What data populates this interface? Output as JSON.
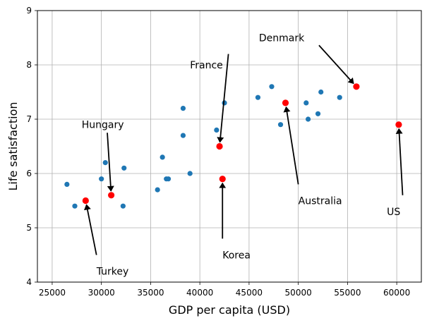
{
  "chart_data": {
    "type": "scatter",
    "title": "",
    "xlabel": "GDP per capita (USD)",
    "ylabel": "Life satisfaction",
    "xlim": [
      23500,
      62500
    ],
    "ylim": [
      4,
      9
    ],
    "xticks": [
      25000,
      30000,
      35000,
      40000,
      45000,
      50000,
      55000,
      60000
    ],
    "yticks": [
      4,
      5,
      6,
      7,
      8,
      9
    ],
    "grid": true,
    "colors": {
      "points": "#1f77b4",
      "highlight": "#ff0000",
      "grid": "#b0b0b0",
      "arrow": "#000000"
    },
    "series": [
      {
        "points": [
          {
            "x": 26500,
            "y": 5.8
          },
          {
            "x": 27300,
            "y": 5.4
          },
          {
            "x": 30000,
            "y": 5.9
          },
          {
            "x": 30400,
            "y": 6.2
          },
          {
            "x": 32300,
            "y": 6.1
          },
          {
            "x": 32200,
            "y": 5.4
          },
          {
            "x": 35700,
            "y": 5.7
          },
          {
            "x": 36200,
            "y": 6.3
          },
          {
            "x": 36600,
            "y": 5.9
          },
          {
            "x": 36800,
            "y": 5.9
          },
          {
            "x": 38300,
            "y": 6.7
          },
          {
            "x": 38300,
            "y": 7.2
          },
          {
            "x": 39000,
            "y": 6.0
          },
          {
            "x": 41700,
            "y": 6.8
          },
          {
            "x": 42500,
            "y": 7.3
          },
          {
            "x": 45900,
            "y": 7.4
          },
          {
            "x": 47300,
            "y": 7.6
          },
          {
            "x": 48200,
            "y": 6.9
          },
          {
            "x": 50800,
            "y": 7.3
          },
          {
            "x": 51000,
            "y": 7.0
          },
          {
            "x": 52000,
            "y": 7.1
          },
          {
            "x": 52300,
            "y": 7.5
          },
          {
            "x": 54200,
            "y": 7.4
          }
        ]
      },
      {
        "points": [
          {
            "x": 28400,
            "y": 5.5
          },
          {
            "x": 31000,
            "y": 5.6
          },
          {
            "x": 42000,
            "y": 6.5
          },
          {
            "x": 42300,
            "y": 5.9
          },
          {
            "x": 48700,
            "y": 7.3
          },
          {
            "x": 55900,
            "y": 7.6
          },
          {
            "x": 60200,
            "y": 6.9
          }
        ]
      }
    ],
    "annotations": [
      {
        "text": "Turkey",
        "point": [
          28400,
          5.5
        ],
        "text_pos": [
          29500,
          4.2
        ],
        "tail": [
          29500,
          4.5
        ]
      },
      {
        "text": "Hungary",
        "point": [
          31000,
          5.6
        ],
        "text_pos": [
          28000,
          6.9
        ],
        "tail": [
          30600,
          6.75
        ]
      },
      {
        "text": "France",
        "point": [
          42000,
          6.5
        ],
        "text_pos": [
          39000,
          8.0
        ],
        "tail": [
          42900,
          8.2
        ]
      },
      {
        "text": "Korea",
        "point": [
          42300,
          5.9
        ],
        "text_pos": [
          42300,
          4.5
        ],
        "tail": [
          42300,
          4.8
        ]
      },
      {
        "text": "Australia",
        "point": [
          48700,
          7.3
        ],
        "text_pos": [
          50000,
          5.5
        ],
        "tail": [
          50000,
          5.8
        ]
      },
      {
        "text": "Denmark",
        "point": [
          55900,
          7.6
        ],
        "text_pos": [
          46000,
          8.5
        ],
        "tail": [
          52100,
          8.36
        ]
      },
      {
        "text": "US",
        "point": [
          60200,
          6.9
        ],
        "text_pos": [
          59000,
          5.3
        ],
        "tail": [
          60600,
          5.6
        ]
      }
    ]
  }
}
